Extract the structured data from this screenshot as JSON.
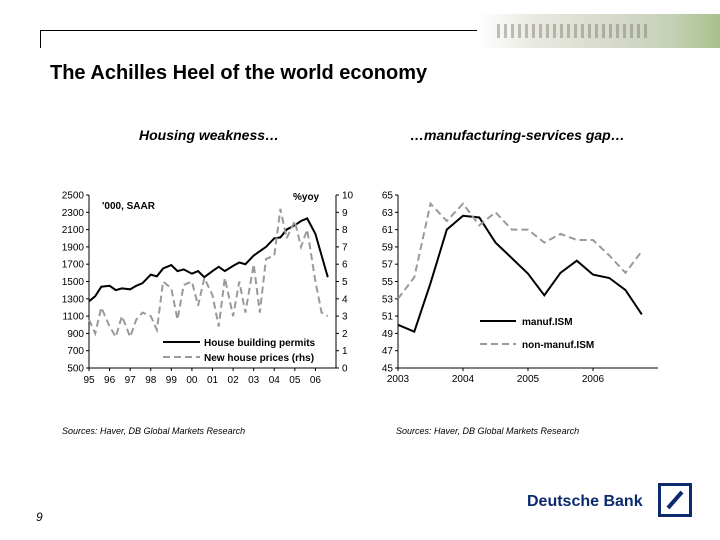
{
  "title": "The Achilles Heel of the world economy",
  "page_number": "9",
  "brand": "Deutsche Bank",
  "colors": {
    "line_dark": "#000000",
    "line_dashed": "#9a9a9a",
    "brand_blue": "#0b2a6e"
  },
  "chart_data": [
    {
      "type": "line",
      "subtitle": "Housing weakness…",
      "unit_left": "'000, SAAR",
      "unit_right": "%yoy",
      "source": "Sources: Haver, DB Global Markets Research",
      "ylim_left": [
        500,
        2500
      ],
      "ylim_right": [
        0,
        10
      ],
      "xlim": [
        1995,
        2007
      ],
      "yticks_left": [
        "2500",
        "2300",
        "2100",
        "1900",
        "1700",
        "1500",
        "1300",
        "1100",
        "900",
        "700",
        "500"
      ],
      "yticks_right": [
        "10",
        "9",
        "8",
        "7",
        "6",
        "5",
        "4",
        "3",
        "2",
        "1",
        "0"
      ],
      "xticks": [
        "95",
        "96",
        "97",
        "98",
        "99",
        "00",
        "01",
        "02",
        "03",
        "04",
        "05",
        "06"
      ],
      "series": [
        {
          "name": "House building permits",
          "axis": "left",
          "style": "solid",
          "x": [
            1995.0,
            1995.3,
            1995.6,
            1996.0,
            1996.3,
            1996.6,
            1997.0,
            1997.3,
            1997.6,
            1998.0,
            1998.3,
            1998.6,
            1999.0,
            1999.3,
            1999.6,
            2000.0,
            2000.3,
            2000.6,
            2001.0,
            2001.3,
            2001.6,
            2002.0,
            2002.3,
            2002.6,
            2003.0,
            2003.3,
            2003.6,
            2004.0,
            2004.3,
            2004.6,
            2005.0,
            2005.3,
            2005.6,
            2006.0,
            2006.3,
            2006.6
          ],
          "y": [
            1270,
            1330,
            1440,
            1450,
            1400,
            1420,
            1410,
            1450,
            1480,
            1580,
            1560,
            1650,
            1690,
            1620,
            1640,
            1590,
            1620,
            1550,
            1620,
            1670,
            1620,
            1680,
            1720,
            1700,
            1800,
            1850,
            1900,
            2000,
            2010,
            2100,
            2150,
            2200,
            2230,
            2050,
            1800,
            1550
          ]
        },
        {
          "name": "New house prices (rhs)",
          "axis": "right",
          "style": "dashed",
          "x": [
            1995.0,
            1995.3,
            1995.6,
            1996.0,
            1996.3,
            1996.6,
            1997.0,
            1997.3,
            1997.6,
            1998.0,
            1998.3,
            1998.6,
            1999.0,
            1999.3,
            1999.6,
            2000.0,
            2000.3,
            2000.6,
            2001.0,
            2001.3,
            2001.6,
            2002.0,
            2002.3,
            2002.6,
            2003.0,
            2003.3,
            2003.6,
            2004.0,
            2004.3,
            2004.6,
            2005.0,
            2005.3,
            2005.6,
            2006.0,
            2006.3,
            2006.6
          ],
          "y": [
            2.8,
            2.0,
            3.5,
            2.4,
            1.8,
            3.0,
            1.8,
            2.8,
            3.2,
            3.0,
            2.2,
            5.0,
            4.6,
            2.8,
            4.8,
            5.0,
            3.6,
            5.2,
            4.2,
            2.4,
            5.2,
            3.0,
            5.0,
            3.2,
            6.0,
            3.2,
            6.3,
            6.5,
            9.2,
            7.5,
            8.5,
            7.0,
            8.0,
            5.0,
            3.2,
            3.0
          ]
        }
      ]
    },
    {
      "type": "line",
      "subtitle": "…manufacturing-services gap…",
      "source": "Sources: Haver, DB Global Markets Research",
      "ylim": [
        45,
        65
      ],
      "xlim": [
        2003,
        2007
      ],
      "yticks": [
        "65",
        "63",
        "61",
        "59",
        "57",
        "55",
        "53",
        "51",
        "49",
        "47",
        "45"
      ],
      "xticks": [
        "2003",
        "2004",
        "2005",
        "2006"
      ],
      "series": [
        {
          "name": "manuf.ISM",
          "style": "solid",
          "x": [
            2003.0,
            2003.25,
            2003.5,
            2003.75,
            2004.0,
            2004.25,
            2004.5,
            2004.75,
            2005.0,
            2005.25,
            2005.5,
            2005.75,
            2006.0,
            2006.25,
            2006.5,
            2006.75
          ],
          "y": [
            50.0,
            49.2,
            54.8,
            61.0,
            62.6,
            62.4,
            59.5,
            57.7,
            55.9,
            53.4,
            56.0,
            57.4,
            55.8,
            55.4,
            54.0,
            51.2
          ]
        },
        {
          "name": "non-manuf.ISM",
          "style": "dashed",
          "x": [
            2003.0,
            2003.25,
            2003.5,
            2003.75,
            2004.0,
            2004.25,
            2004.5,
            2004.75,
            2005.0,
            2005.25,
            2005.5,
            2005.75,
            2006.0,
            2006.25,
            2006.5,
            2006.75
          ],
          "y": [
            53.0,
            55.5,
            64.0,
            62.0,
            64.0,
            61.5,
            63.0,
            61.0,
            61.0,
            59.5,
            60.5,
            59.8,
            59.8,
            58.0,
            56.0,
            58.5
          ]
        }
      ]
    }
  ]
}
